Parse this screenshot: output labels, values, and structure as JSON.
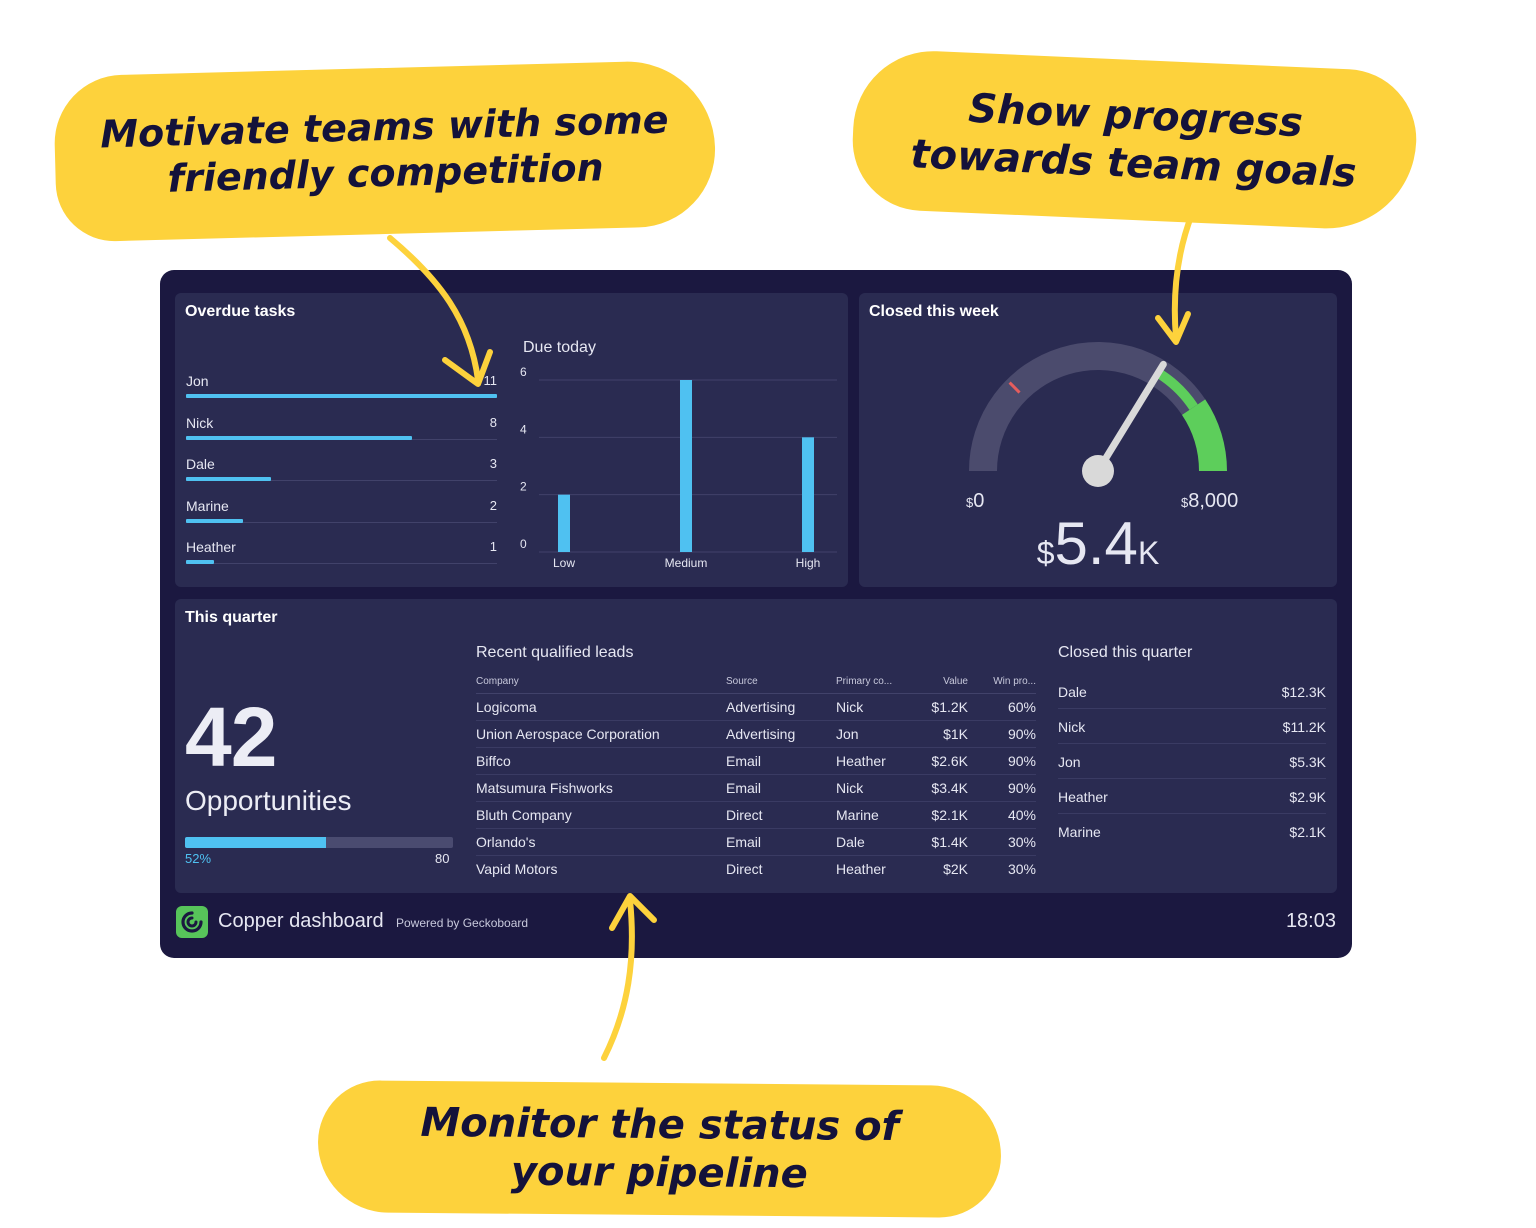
{
  "callouts": {
    "left": [
      "Motivate teams with some",
      "friendly competition"
    ],
    "right": [
      "Show progress",
      "towards team goals"
    ],
    "bottom": [
      "Monitor the status of",
      "your pipeline"
    ]
  },
  "overdue_tasks": {
    "title": "Overdue tasks",
    "rows": [
      {
        "name": "Jon",
        "value": "11",
        "amount": 11
      },
      {
        "name": "Nick",
        "value": "8",
        "amount": 8
      },
      {
        "name": "Dale",
        "value": "3",
        "amount": 3
      },
      {
        "name": "Marine",
        "value": "2",
        "amount": 2
      },
      {
        "name": "Heather",
        "value": "1",
        "amount": 1
      }
    ],
    "max": 11
  },
  "due_today": {
    "title": "Due today",
    "y_ticks": [
      "6",
      "4",
      "2",
      "0"
    ]
  },
  "chart_data": {
    "type": "bar",
    "title": "Due today",
    "categories": [
      "Low",
      "Medium",
      "High"
    ],
    "values": [
      2,
      6,
      4
    ],
    "xlabel": "",
    "ylabel": "",
    "ylim": [
      0,
      6
    ],
    "grid": true
  },
  "closed_week": {
    "title": "Closed this week",
    "min_label": "0",
    "max_label": "8,000",
    "currency": "$",
    "value_number": "5.4",
    "value_suffix": "K",
    "min": 0,
    "max": 8000,
    "value": 5400,
    "target": 6500,
    "warn": 2000,
    "colors": {
      "track": "#4b4b6d",
      "good": "#5dce5b",
      "warn": "#e55d5d",
      "needle": "#d9d9d9"
    }
  },
  "this_quarter": {
    "title": "This quarter",
    "big_number": "42",
    "big_label": "Opportunities",
    "progress_pct": "52%",
    "progress_goal": "80",
    "progress_fraction": 0.525
  },
  "leads": {
    "title": "Recent qualified leads",
    "headers": [
      "Company",
      "Source",
      "Primary co...",
      "Value",
      "Win pro..."
    ],
    "rows": [
      [
        "Logicoma",
        "Advertising",
        "Nick",
        "$1.2K",
        "60%"
      ],
      [
        "Union Aerospace Corporation",
        "Advertising",
        "Jon",
        "$1K",
        "90%"
      ],
      [
        "Biffco",
        "Email",
        "Heather",
        "$2.6K",
        "90%"
      ],
      [
        "Matsumura Fishworks",
        "Email",
        "Nick",
        "$3.4K",
        "90%"
      ],
      [
        "Bluth Company",
        "Direct",
        "Marine",
        "$2.1K",
        "40%"
      ],
      [
        "Orlando's",
        "Email",
        "Dale",
        "$1.4K",
        "30%"
      ],
      [
        "Vapid Motors",
        "Direct",
        "Heather",
        "$2K",
        "30%"
      ]
    ]
  },
  "closed_quarter": {
    "title": "Closed this quarter",
    "rows": [
      {
        "name": "Dale",
        "value": "$12.3K"
      },
      {
        "name": "Nick",
        "value": "$11.2K"
      },
      {
        "name": "Jon",
        "value": "$5.3K"
      },
      {
        "name": "Heather",
        "value": "$2.9K"
      },
      {
        "name": "Marine",
        "value": "$2.1K"
      }
    ]
  },
  "footer": {
    "title": "Copper dashboard",
    "powered": "Powered by Geckoboard",
    "clock": "18:03",
    "logo_color": "#57c45a"
  },
  "accent": {
    "bar": "#4fc1f1",
    "callout": "#fdd23c",
    "background": "#1b1840",
    "panel": "#2a2b51"
  }
}
